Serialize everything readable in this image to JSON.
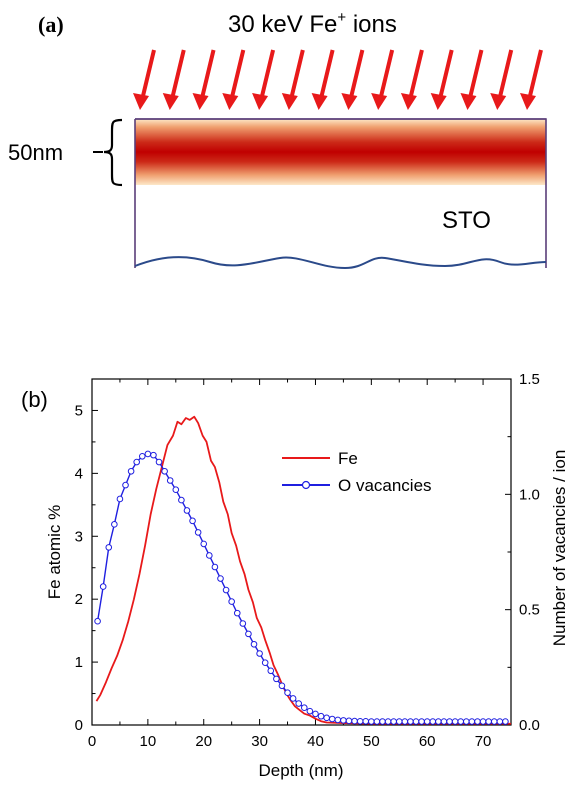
{
  "panel_a": {
    "label": "(a)",
    "beam_text": "30 keV Fe",
    "beam_superscript": "+",
    "beam_text_suffix": " ions",
    "thickness_label": "50nm",
    "substrate_label": "STO",
    "arrow_count": 14,
    "colors": {
      "arrow": "#e8191a",
      "implant_core": "#c00000",
      "implant_edge": "#fde8c8",
      "outline": "#5a3e7a",
      "substrate_edge": "#2b4a8a"
    }
  },
  "chart_data": {
    "type": "line",
    "panel_label": "(b)",
    "xlabel": "Depth (nm)",
    "ylabel": "Fe atomic %",
    "y2label": "Number of vacancies / ion",
    "xlim": [
      0,
      75
    ],
    "ylim": [
      0,
      5.5
    ],
    "y2lim": [
      0,
      1.5
    ],
    "xticks": [
      0,
      10,
      20,
      30,
      40,
      50,
      60,
      70
    ],
    "yticks": [
      0,
      1,
      2,
      3,
      4,
      5
    ],
    "y2ticks": [
      0.0,
      0.5,
      1.0,
      1.5
    ],
    "y2ticklabels": [
      "0.0",
      "0.5",
      "1.0",
      "1.5"
    ],
    "legend_position": "top-right",
    "series": [
      {
        "name": "Fe",
        "axis": "left",
        "color": "#e8191a",
        "marker": "none",
        "points": [
          [
            0.8,
            0.38
          ],
          [
            1.5,
            0.48
          ],
          [
            2.5,
            0.68
          ],
          [
            3.5,
            0.9
          ],
          [
            4.5,
            1.1
          ],
          [
            5.5,
            1.35
          ],
          [
            6.5,
            1.65
          ],
          [
            7.5,
            2.0
          ],
          [
            8.5,
            2.4
          ],
          [
            9.5,
            2.85
          ],
          [
            10.5,
            3.35
          ],
          [
            11.5,
            3.75
          ],
          [
            12.5,
            4.1
          ],
          [
            13.5,
            4.45
          ],
          [
            14.5,
            4.6
          ],
          [
            15.3,
            4.82
          ],
          [
            16.0,
            4.78
          ],
          [
            16.8,
            4.88
          ],
          [
            17.5,
            4.85
          ],
          [
            18.3,
            4.9
          ],
          [
            19.0,
            4.8
          ],
          [
            19.8,
            4.6
          ],
          [
            20.5,
            4.5
          ],
          [
            21.3,
            4.2
          ],
          [
            22.0,
            4.1
          ],
          [
            22.8,
            3.85
          ],
          [
            23.5,
            3.55
          ],
          [
            24.3,
            3.35
          ],
          [
            25.0,
            3.05
          ],
          [
            25.8,
            2.85
          ],
          [
            26.5,
            2.6
          ],
          [
            27.3,
            2.4
          ],
          [
            28.0,
            2.15
          ],
          [
            28.8,
            1.95
          ],
          [
            29.5,
            1.7
          ],
          [
            30.3,
            1.55
          ],
          [
            31.0,
            1.35
          ],
          [
            31.8,
            1.15
          ],
          [
            32.5,
            0.95
          ],
          [
            33.3,
            0.8
          ],
          [
            34.0,
            0.65
          ],
          [
            34.8,
            0.5
          ],
          [
            35.5,
            0.4
          ],
          [
            36.3,
            0.3
          ],
          [
            37.0,
            0.25
          ],
          [
            38.0,
            0.18
          ],
          [
            39.0,
            0.15
          ],
          [
            40.0,
            0.1
          ],
          [
            41.0,
            0.06
          ],
          [
            42.0,
            0.04
          ],
          [
            45.0,
            0.03
          ],
          [
            50.0,
            0.02
          ],
          [
            55.0,
            0.02
          ],
          [
            60.0,
            0.02
          ],
          [
            65.0,
            0.02
          ],
          [
            70.0,
            0.02
          ],
          [
            75.0,
            0.02
          ]
        ]
      },
      {
        "name": "O vacancies",
        "axis": "right",
        "color": "#1f1fe0",
        "marker": "open-circle",
        "points": [
          [
            1,
            0.45
          ],
          [
            2,
            0.6
          ],
          [
            3,
            0.77
          ],
          [
            4,
            0.87
          ],
          [
            5,
            0.98
          ],
          [
            6,
            1.04
          ],
          [
            7,
            1.1
          ],
          [
            8,
            1.14
          ],
          [
            9,
            1.165
          ],
          [
            10,
            1.175
          ],
          [
            11,
            1.17
          ],
          [
            12,
            1.14
          ],
          [
            13,
            1.1
          ],
          [
            14,
            1.06
          ],
          [
            15,
            1.02
          ],
          [
            16,
            0.975
          ],
          [
            17,
            0.93
          ],
          [
            18,
            0.885
          ],
          [
            19,
            0.835
          ],
          [
            20,
            0.785
          ],
          [
            21,
            0.735
          ],
          [
            22,
            0.685
          ],
          [
            23,
            0.635
          ],
          [
            24,
            0.585
          ],
          [
            25,
            0.535
          ],
          [
            26,
            0.485
          ],
          [
            27,
            0.44
          ],
          [
            28,
            0.395
          ],
          [
            29,
            0.35
          ],
          [
            30,
            0.31
          ],
          [
            31,
            0.27
          ],
          [
            32,
            0.235
          ],
          [
            33,
            0.2
          ],
          [
            34,
            0.17
          ],
          [
            35,
            0.14
          ],
          [
            36,
            0.115
          ],
          [
            37,
            0.093
          ],
          [
            38,
            0.075
          ],
          [
            39,
            0.06
          ],
          [
            40,
            0.048
          ],
          [
            41,
            0.038
          ],
          [
            42,
            0.031
          ],
          [
            43,
            0.026
          ],
          [
            44,
            0.022
          ],
          [
            45,
            0.02
          ],
          [
            46,
            0.018
          ],
          [
            47,
            0.017
          ],
          [
            48,
            0.016
          ],
          [
            49,
            0.016
          ],
          [
            50,
            0.015
          ],
          [
            51,
            0.015
          ],
          [
            52,
            0.015
          ],
          [
            53,
            0.015
          ],
          [
            54,
            0.015
          ],
          [
            55,
            0.015
          ],
          [
            56,
            0.015
          ],
          [
            57,
            0.015
          ],
          [
            58,
            0.015
          ],
          [
            59,
            0.015
          ],
          [
            60,
            0.015
          ],
          [
            61,
            0.015
          ],
          [
            62,
            0.015
          ],
          [
            63,
            0.015
          ],
          [
            64,
            0.015
          ],
          [
            65,
            0.015
          ],
          [
            66,
            0.015
          ],
          [
            67,
            0.015
          ],
          [
            68,
            0.015
          ],
          [
            69,
            0.015
          ],
          [
            70,
            0.015
          ],
          [
            71,
            0.015
          ],
          [
            72,
            0.015
          ],
          [
            73,
            0.015
          ],
          [
            74,
            0.015
          ]
        ]
      }
    ]
  }
}
